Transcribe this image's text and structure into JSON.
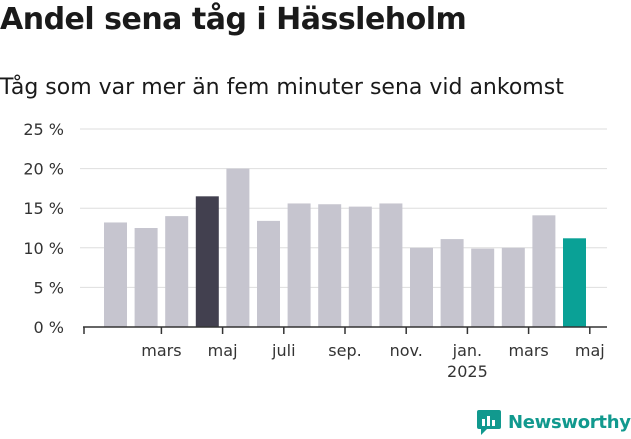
{
  "header": {
    "title": "Andel sena tåg i Hässleholm",
    "subtitle": "Tåg som var mer än fem minuter sena vid ankomst"
  },
  "brand": {
    "name": "Newsworthy",
    "icon": "newsworthy-logo-icon",
    "color": "#11998e"
  },
  "chart_data": {
    "type": "bar",
    "y_tick_labels": [
      "0 %",
      "5 %",
      "10 %",
      "15 %",
      "20 %",
      "25 %"
    ],
    "y_ticks": [
      0,
      5,
      10,
      15,
      20,
      25
    ],
    "ylim": [
      0,
      25
    ],
    "grid": true,
    "x_tick_labels": [
      {
        "after_bar": 2,
        "line1": "mars",
        "line2": ""
      },
      {
        "after_bar": 4,
        "line1": "maj",
        "line2": ""
      },
      {
        "after_bar": 6,
        "line1": "juli",
        "line2": ""
      },
      {
        "after_bar": 8,
        "line1": "sep.",
        "line2": ""
      },
      {
        "after_bar": 10,
        "line1": "nov.",
        "line2": ""
      },
      {
        "after_bar": 12,
        "line1": "jan.",
        "line2": "2025"
      },
      {
        "after_bar": 14,
        "line1": "mars",
        "line2": ""
      },
      {
        "after_bar": 16,
        "line1": "maj",
        "line2": ""
      }
    ],
    "values": [
      13.2,
      12.5,
      14.0,
      16.5,
      20.0,
      13.4,
      15.6,
      15.5,
      15.2,
      15.6,
      10.0,
      11.1,
      9.9,
      10.0,
      14.1,
      11.2
    ],
    "bar_colors": [
      "#c6c5cf",
      "#c6c5cf",
      "#c6c5cf",
      "#42404f",
      "#c6c5cf",
      "#c6c5cf",
      "#c6c5cf",
      "#c6c5cf",
      "#c6c5cf",
      "#c6c5cf",
      "#c6c5cf",
      "#c6c5cf",
      "#c6c5cf",
      "#c6c5cf",
      "#c6c5cf",
      "#0aa196"
    ]
  }
}
